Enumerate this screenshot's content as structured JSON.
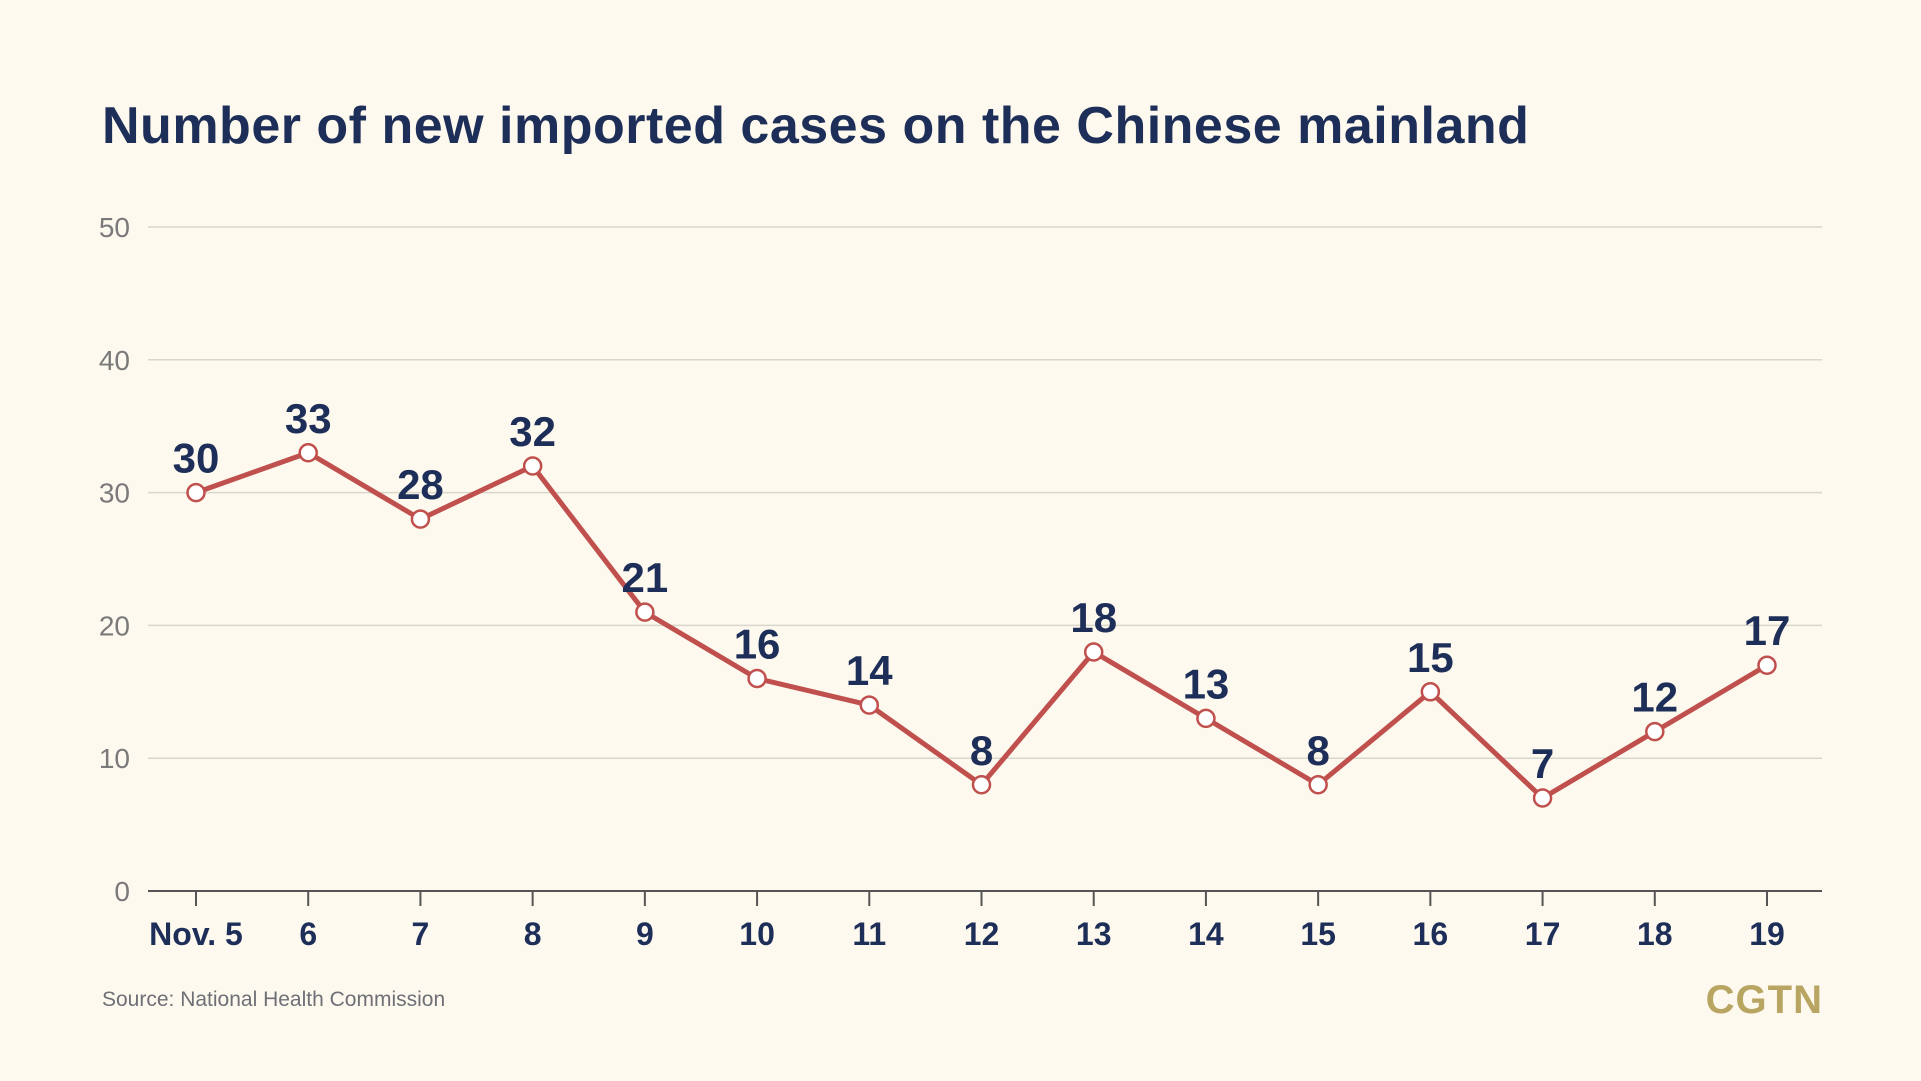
{
  "colors": {
    "background": "#fdf9ee",
    "title": "#1d2e58",
    "line": "#c0504d",
    "grid": "#d9d6cc",
    "axis_text": "#7a7a7a",
    "source": "#6e7076",
    "brand": "#b8a562"
  },
  "chart_data": {
    "type": "line",
    "title": "Number of new imported cases on the Chinese mainland",
    "xlabel": "",
    "ylabel": "",
    "categories": [
      "Nov. 5",
      "6",
      "7",
      "8",
      "9",
      "10",
      "11",
      "12",
      "13",
      "14",
      "15",
      "16",
      "17",
      "18",
      "19"
    ],
    "series": [
      {
        "name": "New imported cases",
        "values": [
          30,
          33,
          28,
          32,
          21,
          16,
          14,
          8,
          18,
          13,
          8,
          15,
          7,
          12,
          17
        ]
      }
    ],
    "ylim": [
      0,
      50
    ],
    "yticks": [
      0,
      10,
      20,
      30,
      40,
      50
    ],
    "grid": true,
    "legend": "none"
  },
  "footer": {
    "source": "Source: National Health Commission",
    "brand": "CGTN"
  }
}
